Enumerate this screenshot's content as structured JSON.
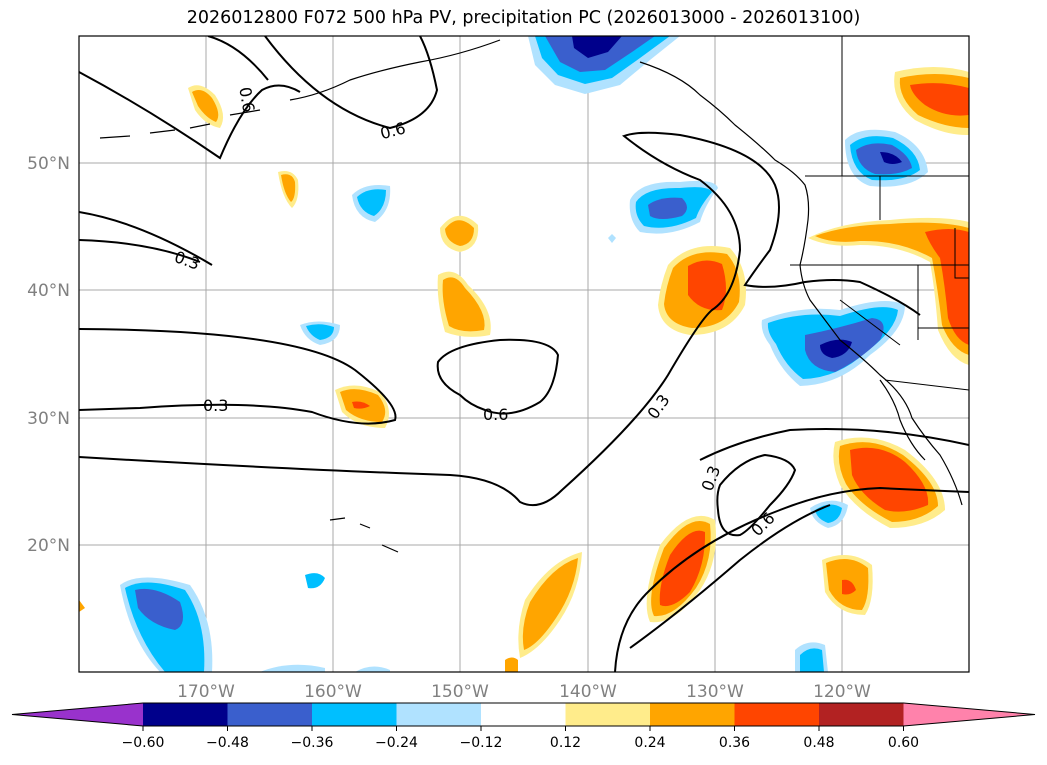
{
  "title": "2026012800 F072 500 hPa PV, precipitation PC (2026013000 - 2026013100)",
  "map": {
    "lon_ticks": [
      "170°W",
      "160°W",
      "150°W",
      "140°W",
      "130°W",
      "120°W"
    ],
    "lat_ticks": [
      "50°N",
      "40°N",
      "30°N",
      "20°N"
    ],
    "grid": true,
    "extent": {
      "lon_min": -180,
      "lon_max": -110,
      "lat_min": 10,
      "lat_max": 60
    }
  },
  "contour_labels": [
    "0.6",
    "0.6",
    "0.3",
    "0.3",
    "0.6",
    "0.3",
    "0.3",
    "0.6"
  ],
  "colorbar": {
    "ticks": [
      "−0.60",
      "−0.48",
      "−0.36",
      "−0.24",
      "−0.12",
      "0.12",
      "0.24",
      "0.36",
      "0.48",
      "0.60"
    ],
    "colors": [
      "#9932cc",
      "#00008b",
      "#3a5fcd",
      "#00bfff",
      "#b0e2ff",
      "#ffffff",
      "#ffec8b",
      "#ffa500",
      "#ff4500",
      "#b22222",
      "#ff82ab"
    ]
  }
}
